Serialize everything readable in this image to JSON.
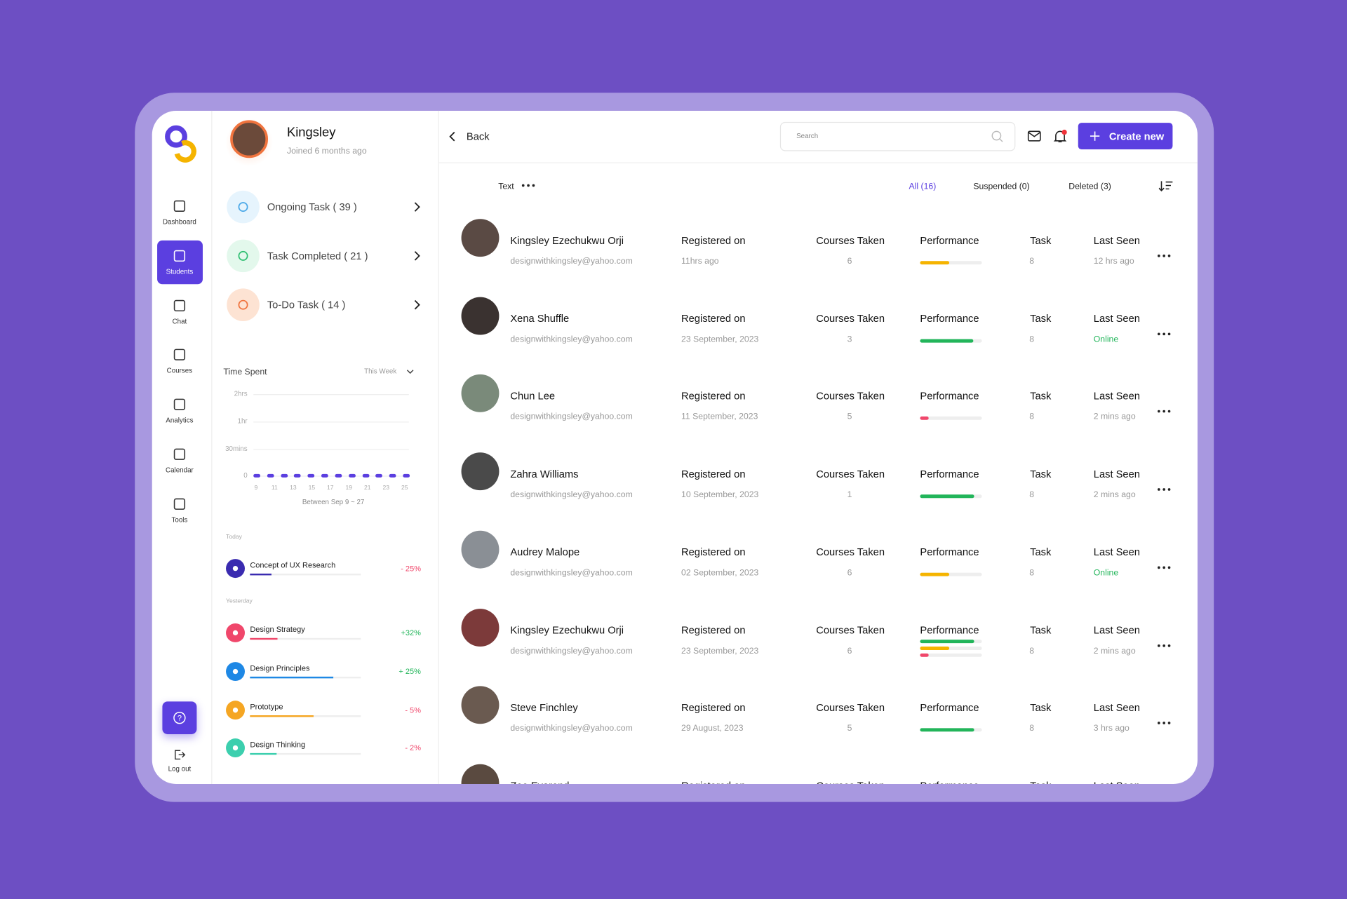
{
  "sidebar": {
    "nav": [
      "Dashboard",
      "Students",
      "Chat",
      "Courses",
      "Analytics",
      "Calendar",
      "Tools"
    ],
    "active": 1,
    "logout": "Log out"
  },
  "profile": {
    "name": "Kingsley",
    "joined": "Joined 6 months ago"
  },
  "tasks": [
    "Ongoing Task ( 39 )",
    "Task Completed ( 21 )",
    "To-Do Task ( 14 )"
  ],
  "time_spent": {
    "title": "Time Spent",
    "period": "This Week",
    "yticks": [
      {
        "value": 120,
        "label": "2hrs"
      },
      {
        "value": 60,
        "label": "1hr"
      },
      {
        "value": 30,
        "label": "30mins"
      },
      0
    ],
    "values": [
      0,
      0,
      0,
      0,
      0,
      0,
      0,
      0,
      0,
      0,
      0,
      0
    ],
    "xlabels": [
      9,
      11,
      13,
      15,
      17,
      19,
      21,
      23,
      25
    ],
    "caption": "Between Sep 9 ~ 27"
  },
  "activity": {
    "today_label": "Today",
    "yesterday_label": "Yesterday",
    "today": [
      {
        "title": "Concept of UX Research",
        "progress": 19,
        "change": -25,
        "change_label": "- 25%",
        "color": "#3a2bb0"
      }
    ],
    "yesterday": [
      {
        "title": "Design Strategy",
        "progress": 25,
        "change": 32,
        "change_label": "+32%",
        "color": "#f0476b"
      },
      {
        "title": "Design Principles",
        "progress": 75,
        "change": 25,
        "change_label": "+ 25%",
        "color": "#1e88e5"
      },
      {
        "title": "Prototype",
        "progress": 57,
        "change": -5,
        "change_label": "- 5%",
        "color": "#f5a623"
      },
      {
        "title": "Design Thinking",
        "progress": 24,
        "change": -2,
        "change_label": "- 2%",
        "color": "#3ccfae"
      }
    ]
  },
  "topbar": {
    "back": "Back",
    "search": "Search",
    "create": "Create new"
  },
  "tabs": {
    "filter": "Text",
    "items": [
      "All (16)",
      "Suspended (0)",
      "Deleted (3)"
    ],
    "active": 0
  },
  "columns": {
    "registered": "Registered on",
    "courses": "Courses Taken",
    "performance": "Performance",
    "task": "Task",
    "last_seen": "Last Seen"
  },
  "rows": [
    {
      "name": "Kingsley Ezechukwu Orji",
      "email": "designwithkingsley@yahoo.com",
      "registered": "11hrs ago",
      "courses": 6,
      "performance": [
        {
          "value": 47,
          "color": "#f5b400"
        }
      ],
      "task": 8,
      "last_seen": "12 hrs ago"
    },
    {
      "name": "Xena Shuffle",
      "email": "designwithkingsley@yahoo.com",
      "registered": "23 September, 2023",
      "courses": 3,
      "performance": [
        {
          "value": 86,
          "color": "#22b55a"
        }
      ],
      "task": 8,
      "last_seen": "Online"
    },
    {
      "name": "Chun Lee",
      "email": "designwithkingsley@yahoo.com",
      "registered": "11 September, 2023",
      "courses": 5,
      "performance": [
        {
          "value": 14,
          "color": "#f0476b"
        }
      ],
      "task": 8,
      "last_seen": "2 mins ago"
    },
    {
      "name": "Zahra Williams",
      "email": "designwithkingsley@yahoo.com",
      "registered": "10 September, 2023",
      "courses": 1,
      "performance": [
        {
          "value": 88,
          "color": "#22b55a"
        }
      ],
      "task": 8,
      "last_seen": "2 mins ago"
    },
    {
      "name": "Audrey Malope",
      "email": "designwithkingsley@yahoo.com",
      "registered": "02 September, 2023",
      "courses": 6,
      "performance": [
        {
          "value": 47,
          "color": "#f5b400"
        }
      ],
      "task": 8,
      "last_seen": "Online"
    },
    {
      "name": "Kingsley Ezechukwu Orji",
      "email": "designwithkingsley@yahoo.com",
      "registered": "23 September, 2023",
      "courses": 6,
      "performance": [
        {
          "value": 88,
          "color": "#22b55a"
        },
        {
          "value": 47,
          "color": "#f5b400"
        },
        {
          "value": 14,
          "color": "#f0476b"
        }
      ],
      "task": 8,
      "last_seen": "2 mins ago"
    },
    {
      "name": "Steve Finchley",
      "email": "designwithkingsley@yahoo.com",
      "registered": "29 August, 2023",
      "courses": 5,
      "performance": [
        {
          "value": 88,
          "color": "#22b55a"
        }
      ],
      "task": 8,
      "last_seen": "3 hrs ago"
    },
    {
      "name": "Zoe Evarend"
    }
  ]
}
